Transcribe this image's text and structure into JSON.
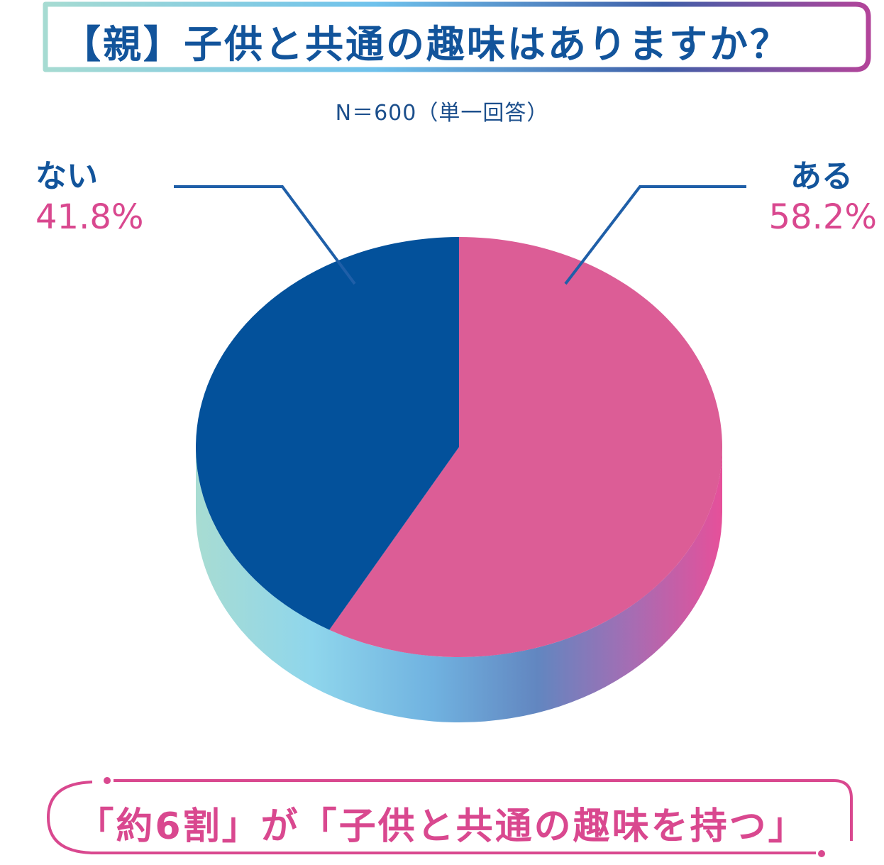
{
  "title": "【親】子供と共通の趣味はありますか？",
  "subtitle": "N＝600（単一回答）",
  "footer": "「約6割」が「子供と共通の趣味を持つ」",
  "colors": {
    "blue": "#03519b",
    "pink": "#dc5d96",
    "pink_side": "#e6509a",
    "title_text": "#12549b",
    "accent_text": "#d9488f"
  },
  "chart_data": {
    "type": "pie",
    "title": "【親】子供と共通の趣味はありますか？",
    "subtitle": "N＝600（単一回答）",
    "slices": [
      {
        "label": "ある",
        "value": 58.2,
        "display": "58.2%",
        "color": "#dc5d96"
      },
      {
        "label": "ない",
        "value": 41.8,
        "display": "41.8%",
        "color": "#03519b"
      }
    ]
  }
}
